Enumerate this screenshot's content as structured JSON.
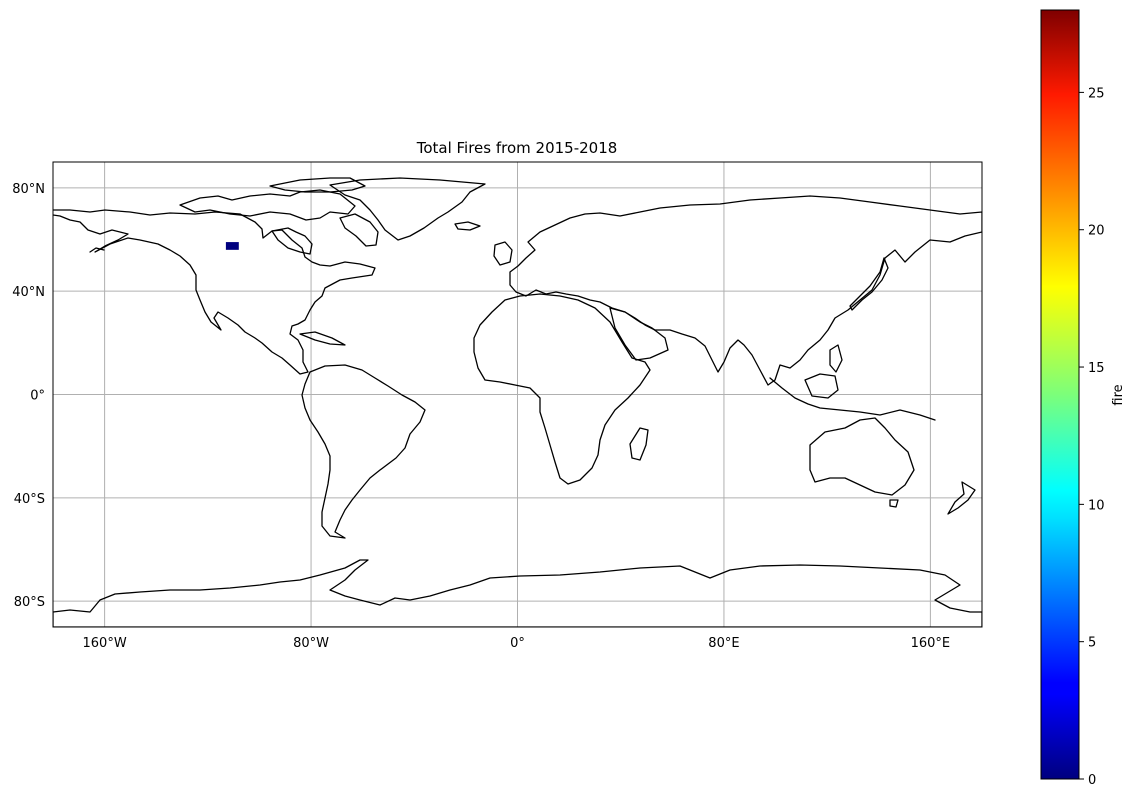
{
  "map": {
    "title": "Total Fires from 2015-2018",
    "projection": "PlateCarree",
    "lon_range": [
      -180,
      180
    ],
    "lat_range": [
      -90,
      90
    ],
    "gridlines": true,
    "lon_ticks": [
      {
        "value": -160,
        "label": "160°W"
      },
      {
        "value": -80,
        "label": "80°W"
      },
      {
        "value": 0,
        "label": "0°"
      },
      {
        "value": 80,
        "label": "80°E"
      },
      {
        "value": 160,
        "label": "160°E"
      }
    ],
    "lat_ticks": [
      {
        "value": 80,
        "label": "80°N"
      },
      {
        "value": 40,
        "label": "40°N"
      },
      {
        "value": 0,
        "label": "0°"
      },
      {
        "value": -40,
        "label": "40°S"
      },
      {
        "value": -80,
        "label": "80°S"
      }
    ],
    "fire_patch": {
      "lon_range": [
        -113,
        -108
      ],
      "lat_range": [
        56,
        59
      ],
      "value": 1
    }
  },
  "colorbar": {
    "label": "fire",
    "colormap": "jet",
    "range": [
      0,
      28
    ],
    "ticks": [
      0,
      5,
      10,
      15,
      20,
      25
    ]
  }
}
